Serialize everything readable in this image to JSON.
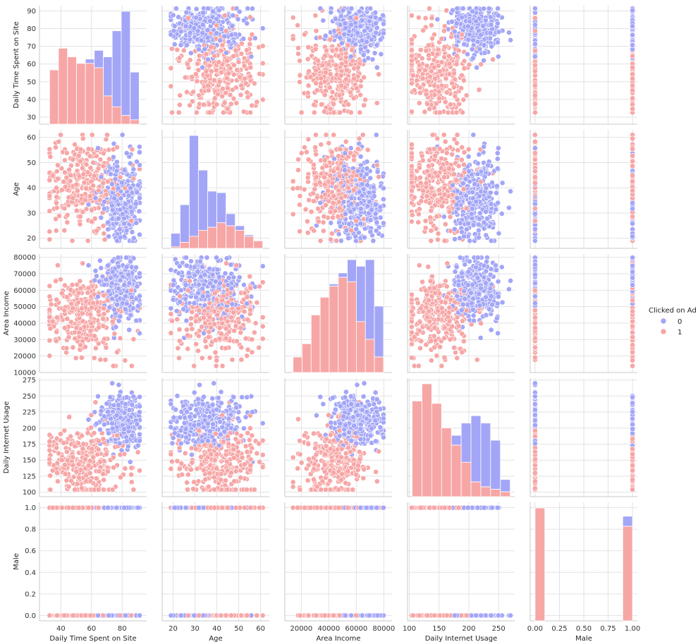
{
  "chart_data": {
    "type": "scatter",
    "subtype": "pairplot",
    "variables": [
      "Daily Time Spent on Site",
      "Age",
      "Area Income",
      "Daily Internet Usage",
      "Male"
    ],
    "hue": "Clicked on Ad",
    "legend": {
      "title": "Clicked on Ad",
      "position": "right",
      "entries": [
        {
          "label": "0",
          "color": "#a3a6f7"
        },
        {
          "label": "1",
          "color": "#f7a6a6"
        }
      ]
    },
    "axes": [
      {
        "name": "Daily Time Spent on Site",
        "lim": [
          26,
          96
        ],
        "ticks": [
          40,
          60,
          80
        ],
        "ticklabels": [
          "40",
          "60",
          "80"
        ],
        "ylim": [
          26,
          93
        ],
        "yticks": [
          30,
          40,
          50,
          60,
          70,
          80,
          90
        ],
        "yticklabels": [
          "30",
          "40",
          "50",
          "60",
          "70",
          "80",
          "90"
        ]
      },
      {
        "name": "Age",
        "lim": [
          15,
          64
        ],
        "ticks": [
          20,
          30,
          40,
          50,
          60
        ],
        "ticklabels": [
          "20",
          "30",
          "40",
          "50",
          "60"
        ],
        "ylim": [
          16,
          63
        ],
        "yticks": [
          20,
          30,
          40,
          50,
          60
        ],
        "yticklabels": [
          "20",
          "30",
          "40",
          "50",
          "60"
        ]
      },
      {
        "name": "Area Income",
        "lim": [
          8000,
          86000
        ],
        "ticks": [
          20000,
          40000,
          60000,
          80000
        ],
        "ticklabels": [
          "20000",
          "40000",
          "60000",
          "80000"
        ],
        "ylim": [
          10000,
          82000
        ],
        "yticks": [
          10000,
          20000,
          30000,
          40000,
          50000,
          60000,
          70000,
          80000
        ],
        "yticklabels": [
          "10000",
          "20000",
          "30000",
          "40000",
          "50000",
          "60000",
          "70000",
          "80000"
        ]
      },
      {
        "name": "Daily Internet Usage",
        "lim": [
          97,
          277
        ],
        "ticks": [
          100,
          150,
          200,
          250
        ],
        "ticklabels": [
          "100",
          "150",
          "200",
          "250"
        ],
        "ylim": [
          93,
          278
        ],
        "yticks": [
          100,
          125,
          150,
          175,
          200,
          225,
          250,
          275
        ],
        "yticklabels": [
          "100",
          "125",
          "150",
          "175",
          "200",
          "225",
          "250",
          "275"
        ]
      },
      {
        "name": "Male",
        "lim": [
          -0.05,
          1.05
        ],
        "ticks": [
          0.0,
          0.25,
          0.5,
          0.75,
          1.0
        ],
        "ticklabels": [
          "0.00",
          "0.25",
          "0.50",
          "0.75",
          "1.00"
        ],
        "ylim": [
          -0.05,
          1.05
        ],
        "yticks": [
          0.0,
          0.2,
          0.4,
          0.6,
          0.8,
          1.0
        ],
        "yticklabels": [
          "0.0",
          "0.2",
          "0.4",
          "0.6",
          "0.8",
          "1.0"
        ]
      }
    ],
    "grid": true,
    "clusters": [
      [
        {
          "group": "0",
          "center": [
            79,
            40,
            60000,
            215,
            0.5
          ],
          "spread": [
            7,
            7,
            10000,
            20,
            0
          ]
        },
        {
          "group": "1",
          "center": [
            55,
            42,
            45000,
            145,
            0.5
          ],
          "spread": [
            13,
            9,
            13000,
            28,
            0
          ]
        }
      ],
      [
        {
          "group": "0",
          "center": [
            79,
            31,
            60000,
            215,
            0.5
          ],
          "spread": [
            7,
            6,
            10000,
            20,
            0
          ]
        },
        {
          "group": "1",
          "center": [
            55,
            41,
            45000,
            145,
            0.5
          ],
          "spread": [
            13,
            9,
            13000,
            28,
            0
          ]
        }
      ]
    ],
    "histograms": [
      {
        "variable": "Daily Time Spent on Site",
        "bins": [
          32.6,
          38.4,
          44.3,
          50.2,
          56.0,
          61.8,
          67.7,
          73.5,
          79.4,
          85.3,
          91.1
        ],
        "group0": [
          0,
          0,
          0,
          0,
          2,
          8,
          18,
          35,
          48,
          22
        ],
        "group1": [
          25,
          35,
          31,
          28,
          28,
          26,
          13,
          8,
          4,
          2
        ]
      },
      {
        "variable": "Age",
        "bins": [
          19,
          23.2,
          27.4,
          31.6,
          35.8,
          40,
          44.2,
          48.4,
          52.6,
          56.8,
          61
        ],
        "group0": [
          9,
          25,
          67,
          40,
          24,
          20,
          8,
          3,
          1,
          0
        ],
        "group1": [
          1,
          4,
          8,
          12,
          14,
          17,
          15,
          12,
          8,
          5
        ]
      },
      {
        "variable": "Area Income",
        "bins": [
          13996,
          20574,
          27153,
          33731,
          40310,
          46888,
          53467,
          60045,
          66624,
          73202,
          79781
        ],
        "group0": [
          0,
          0,
          0,
          0,
          1,
          2,
          10,
          25,
          36,
          23
        ],
        "group1": [
          7,
          13,
          26,
          34,
          39,
          43,
          41,
          23,
          15,
          7
        ]
      },
      {
        "variable": "Daily Internet Usage",
        "bins": [
          104.8,
          121.3,
          137.7,
          154.2,
          170.7,
          187.2,
          203.6,
          220.1,
          236.5,
          253,
          269.5
        ],
        "group0": [
          0,
          0,
          0,
          0,
          4,
          16,
          27,
          26,
          20,
          5
        ],
        "group1": [
          39,
          46,
          38,
          28,
          21,
          14,
          6,
          4,
          3,
          2
        ]
      },
      {
        "variable": "Male",
        "bins": [
          0,
          0.1,
          0.2,
          0.3,
          0.4,
          0.5,
          0.6,
          0.7,
          0.8,
          0.9,
          1.0
        ],
        "group0": [
          0,
          0,
          0,
          0,
          0,
          0,
          0,
          0,
          0,
          11
        ],
        "group1": [
          123,
          0,
          0,
          0,
          0,
          0,
          0,
          0,
          0,
          103
        ]
      }
    ]
  }
}
